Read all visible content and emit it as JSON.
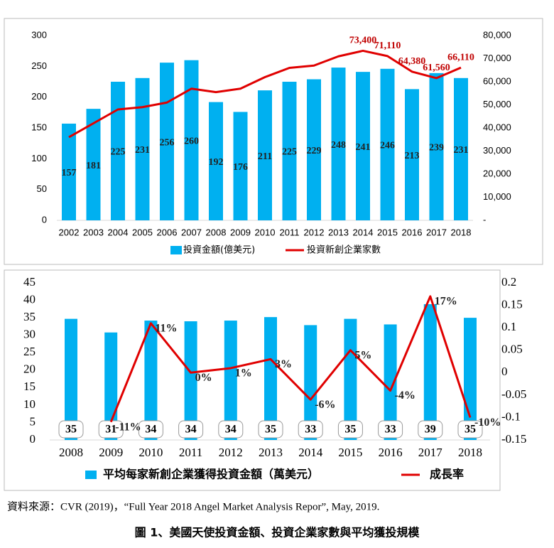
{
  "chart_data": [
    {
      "type": "bar",
      "categories": [
        "2002",
        "2003",
        "2004",
        "2005",
        "2006",
        "2007",
        "2008",
        "2009",
        "2010",
        "2011",
        "2012",
        "2013",
        "2014",
        "2015",
        "2016",
        "2017",
        "2018"
      ],
      "series": [
        {
          "name": "投資金額(億美元)",
          "type": "bar",
          "color": "#00b0f0",
          "values": [
            157,
            181,
            225,
            231,
            256,
            260,
            192,
            176,
            211,
            225,
            229,
            248,
            241,
            246,
            213,
            239,
            231
          ]
        },
        {
          "name": "投資新創企業家數",
          "type": "line",
          "axis": "y2",
          "color": "#e00000",
          "values": [
            36000,
            42000,
            48000,
            49000,
            51000,
            57000,
            55500,
            57000,
            62000,
            66000,
            67000,
            71000,
            73400,
            71110,
            64380,
            61560,
            66110
          ],
          "value_labels": [
            null,
            null,
            null,
            null,
            null,
            null,
            null,
            null,
            null,
            null,
            null,
            null,
            "73,400",
            "71,110",
            "64,380",
            "61,560",
            "66,110"
          ]
        }
      ],
      "ylim": [
        0,
        300
      ],
      "yticks": [
        0,
        50,
        100,
        150,
        200,
        250,
        300
      ],
      "y2lim": [
        0,
        80000
      ],
      "y2ticks": [
        {
          "value": 0,
          "label": "-"
        },
        {
          "value": 10000,
          "label": "10,000"
        },
        {
          "value": 20000,
          "label": "20,000"
        },
        {
          "value": 30000,
          "label": "30,000"
        },
        {
          "value": 40000,
          "label": "40,000"
        },
        {
          "value": 50000,
          "label": "50,000"
        },
        {
          "value": 60000,
          "label": "60,000"
        },
        {
          "value": 70000,
          "label": "70,000"
        },
        {
          "value": 80000,
          "label": "80,000"
        }
      ],
      "legend": "bottom"
    },
    {
      "type": "bar",
      "categories": [
        "2008",
        "2009",
        "2010",
        "2011",
        "2012",
        "2013",
        "2014",
        "2015",
        "2016",
        "2017",
        "2018"
      ],
      "series": [
        {
          "name": "平均每家新創企業獲得投資金額（萬美元）",
          "type": "bar",
          "color": "#00b0f0",
          "values": [
            34.7,
            30.8,
            34.2,
            34,
            34.2,
            35.2,
            32.9,
            34.7,
            33.1,
            38.9,
            35
          ],
          "value_labels": [
            "35",
            "31",
            "34",
            "34",
            "34",
            "35",
            "33",
            "35",
            "33",
            "39",
            "35"
          ]
        },
        {
          "name": "成長率",
          "type": "line",
          "axis": "y2",
          "color": "#e00000",
          "values": [
            null,
            -0.11,
            0.11,
            0.0,
            0.01,
            0.03,
            -0.06,
            0.05,
            -0.04,
            0.17,
            -0.1
          ],
          "value_labels": [
            null,
            "-11%",
            "11%",
            "0%",
            "1%",
            "3%",
            "-6%",
            "5%",
            "-4%",
            "17%",
            "-10%"
          ]
        }
      ],
      "ylim": [
        0,
        45
      ],
      "yticks": [
        0,
        5,
        10,
        15,
        20,
        25,
        30,
        35,
        40,
        45
      ],
      "y2lim": [
        -0.15,
        0.2
      ],
      "y2ticks": [
        -0.15,
        -0.1,
        -0.05,
        0,
        0.05,
        0.1,
        0.15,
        0.2
      ],
      "legend": "bottom"
    }
  ],
  "source": "資料來源：CVR (2019)，“Full Year 2018 Angel Market Analysis Repor”, May, 2019.",
  "caption": "圖 1、美國天使投資金額、投資企業家數與平均獲投規模"
}
